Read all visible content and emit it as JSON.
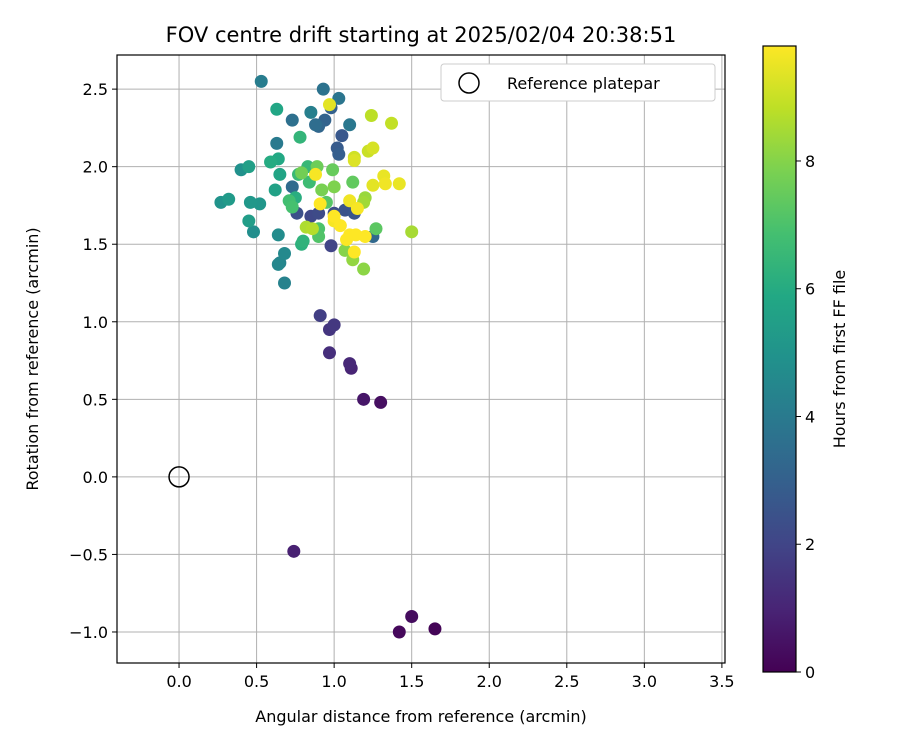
{
  "chart_data": {
    "type": "scatter",
    "title": "FOV centre drift starting at 2025/02/04 20:38:51",
    "xlabel": "Angular distance from reference (arcmin)",
    "ylabel": "Rotation from reference (arcmin)",
    "xlim": [
      -0.4,
      3.52
    ],
    "ylim": [
      -1.2,
      2.72
    ],
    "xticks": [
      0.0,
      0.5,
      1.0,
      1.5,
      2.0,
      2.5,
      3.0,
      3.5
    ],
    "xtick_labels": [
      "0.0",
      "0.5",
      "1.0",
      "1.5",
      "2.0",
      "2.5",
      "3.0",
      "3.5"
    ],
    "yticks": [
      -1.0,
      -0.5,
      0.0,
      0.5,
      1.0,
      1.5,
      2.0,
      2.5
    ],
    "ytick_labels": [
      "−1.0",
      "−0.5",
      "0.0",
      "0.5",
      "1.0",
      "1.5",
      "2.0",
      "2.5"
    ],
    "grid": true,
    "legend": {
      "placement": "top-right",
      "entries": [
        "Reference platepar"
      ]
    },
    "reference_point": {
      "x": 0.0,
      "y": 0.0
    },
    "colorbar": {
      "label": "Hours from first FF file",
      "range": [
        0,
        9.8
      ],
      "ticks": [
        0,
        2,
        4,
        6,
        8
      ],
      "tick_labels": [
        "0",
        "2",
        "4",
        "6",
        "8"
      ],
      "colormap": "viridis"
    },
    "points": [
      {
        "x": 1.65,
        "y": -0.98,
        "c": 0.1
      },
      {
        "x": 1.42,
        "y": -1.0,
        "c": 0.2
      },
      {
        "x": 1.5,
        "y": -0.9,
        "c": 0.3
      },
      {
        "x": 1.3,
        "y": 0.48,
        "c": 0.4
      },
      {
        "x": 1.19,
        "y": 0.5,
        "c": 0.6
      },
      {
        "x": 0.74,
        "y": -0.48,
        "c": 0.9
      },
      {
        "x": 1.11,
        "y": 0.7,
        "c": 1.0
      },
      {
        "x": 1.1,
        "y": 0.73,
        "c": 1.1
      },
      {
        "x": 0.97,
        "y": 0.8,
        "c": 1.3
      },
      {
        "x": 0.97,
        "y": 0.95,
        "c": 1.5
      },
      {
        "x": 1.0,
        "y": 0.98,
        "c": 1.6
      },
      {
        "x": 0.91,
        "y": 1.04,
        "c": 1.8
      },
      {
        "x": 0.98,
        "y": 1.49,
        "c": 2.0
      },
      {
        "x": 0.85,
        "y": 1.68,
        "c": 2.1
      },
      {
        "x": 0.9,
        "y": 1.7,
        "c": 2.2
      },
      {
        "x": 1.0,
        "y": 1.7,
        "c": 2.3
      },
      {
        "x": 0.76,
        "y": 1.7,
        "c": 2.4
      },
      {
        "x": 1.07,
        "y": 1.72,
        "c": 2.5
      },
      {
        "x": 1.13,
        "y": 1.7,
        "c": 2.6
      },
      {
        "x": 1.05,
        "y": 2.2,
        "c": 2.7
      },
      {
        "x": 1.02,
        "y": 2.12,
        "c": 2.8
      },
      {
        "x": 1.03,
        "y": 2.08,
        "c": 2.9
      },
      {
        "x": 0.98,
        "y": 2.38,
        "c": 3.0
      },
      {
        "x": 0.94,
        "y": 2.3,
        "c": 3.1
      },
      {
        "x": 0.9,
        "y": 2.26,
        "c": 3.2
      },
      {
        "x": 1.25,
        "y": 1.55,
        "c": 3.3
      },
      {
        "x": 0.73,
        "y": 1.87,
        "c": 3.4
      },
      {
        "x": 0.88,
        "y": 2.27,
        "c": 3.5
      },
      {
        "x": 0.73,
        "y": 2.3,
        "c": 3.6
      },
      {
        "x": 0.93,
        "y": 2.5,
        "c": 3.7
      },
      {
        "x": 1.03,
        "y": 2.44,
        "c": 3.8
      },
      {
        "x": 1.1,
        "y": 2.27,
        "c": 3.9
      },
      {
        "x": 0.63,
        "y": 2.15,
        "c": 4.0
      },
      {
        "x": 0.53,
        "y": 2.55,
        "c": 4.1
      },
      {
        "x": 0.85,
        "y": 2.35,
        "c": 4.2
      },
      {
        "x": 0.68,
        "y": 1.25,
        "c": 4.3
      },
      {
        "x": 0.65,
        "y": 1.38,
        "c": 4.4
      },
      {
        "x": 0.64,
        "y": 1.37,
        "c": 4.5
      },
      {
        "x": 0.68,
        "y": 1.44,
        "c": 4.6
      },
      {
        "x": 0.64,
        "y": 1.56,
        "c": 4.7
      },
      {
        "x": 0.48,
        "y": 1.58,
        "c": 4.8
      },
      {
        "x": 0.4,
        "y": 1.98,
        "c": 4.9
      },
      {
        "x": 0.27,
        "y": 1.77,
        "c": 5.0
      },
      {
        "x": 0.52,
        "y": 1.76,
        "c": 5.1
      },
      {
        "x": 0.46,
        "y": 1.77,
        "c": 5.2
      },
      {
        "x": 0.32,
        "y": 1.79,
        "c": 5.3
      },
      {
        "x": 0.45,
        "y": 1.65,
        "c": 5.4
      },
      {
        "x": 0.45,
        "y": 2.0,
        "c": 5.5
      },
      {
        "x": 0.62,
        "y": 1.85,
        "c": 5.6
      },
      {
        "x": 0.65,
        "y": 1.95,
        "c": 5.7
      },
      {
        "x": 0.63,
        "y": 2.37,
        "c": 5.8
      },
      {
        "x": 0.64,
        "y": 2.05,
        "c": 5.9
      },
      {
        "x": 0.59,
        "y": 2.03,
        "c": 6.0
      },
      {
        "x": 0.75,
        "y": 1.8,
        "c": 6.1
      },
      {
        "x": 0.79,
        "y": 1.5,
        "c": 6.2
      },
      {
        "x": 0.8,
        "y": 1.52,
        "c": 6.3
      },
      {
        "x": 0.78,
        "y": 2.19,
        "c": 6.4
      },
      {
        "x": 0.83,
        "y": 2.0,
        "c": 6.5
      },
      {
        "x": 0.77,
        "y": 1.95,
        "c": 6.6
      },
      {
        "x": 0.84,
        "y": 1.9,
        "c": 6.7
      },
      {
        "x": 0.71,
        "y": 1.78,
        "c": 6.8
      },
      {
        "x": 0.73,
        "y": 1.74,
        "c": 6.9
      },
      {
        "x": 0.9,
        "y": 1.6,
        "c": 7.0
      },
      {
        "x": 0.9,
        "y": 1.55,
        "c": 7.1
      },
      {
        "x": 0.95,
        "y": 1.77,
        "c": 7.2
      },
      {
        "x": 1.27,
        "y": 1.6,
        "c": 7.3
      },
      {
        "x": 1.12,
        "y": 1.9,
        "c": 7.4
      },
      {
        "x": 0.99,
        "y": 1.98,
        "c": 7.5
      },
      {
        "x": 0.89,
        "y": 2.0,
        "c": 7.6
      },
      {
        "x": 0.79,
        "y": 1.96,
        "c": 7.7
      },
      {
        "x": 0.92,
        "y": 1.85,
        "c": 7.8
      },
      {
        "x": 1.0,
        "y": 1.87,
        "c": 7.9
      },
      {
        "x": 1.07,
        "y": 1.46,
        "c": 8.0
      },
      {
        "x": 1.19,
        "y": 1.34,
        "c": 8.1
      },
      {
        "x": 1.12,
        "y": 1.4,
        "c": 8.2
      },
      {
        "x": 1.2,
        "y": 1.8,
        "c": 8.3
      },
      {
        "x": 1.19,
        "y": 1.77,
        "c": 8.4
      },
      {
        "x": 1.5,
        "y": 1.58,
        "c": 8.5
      },
      {
        "x": 0.82,
        "y": 1.61,
        "c": 8.6
      },
      {
        "x": 0.86,
        "y": 1.6,
        "c": 8.7
      },
      {
        "x": 1.24,
        "y": 2.33,
        "c": 8.8
      },
      {
        "x": 1.37,
        "y": 2.28,
        "c": 8.9
      },
      {
        "x": 1.22,
        "y": 2.1,
        "c": 9.0
      },
      {
        "x": 1.13,
        "y": 2.06,
        "c": 9.1
      },
      {
        "x": 1.25,
        "y": 2.12,
        "c": 9.2
      },
      {
        "x": 1.13,
        "y": 2.04,
        "c": 9.3
      },
      {
        "x": 0.97,
        "y": 2.4,
        "c": 9.4
      },
      {
        "x": 1.25,
        "y": 1.88,
        "c": 9.4
      },
      {
        "x": 1.42,
        "y": 1.89,
        "c": 9.5
      },
      {
        "x": 1.32,
        "y": 1.94,
        "c": 9.5
      },
      {
        "x": 1.33,
        "y": 1.89,
        "c": 9.6
      },
      {
        "x": 1.1,
        "y": 1.78,
        "c": 9.6
      },
      {
        "x": 1.15,
        "y": 1.73,
        "c": 9.7
      },
      {
        "x": 0.88,
        "y": 1.95,
        "c": 9.7
      },
      {
        "x": 1.0,
        "y": 1.65,
        "c": 9.7
      },
      {
        "x": 1.04,
        "y": 1.62,
        "c": 9.8
      },
      {
        "x": 1.1,
        "y": 1.56,
        "c": 9.8
      },
      {
        "x": 1.14,
        "y": 1.56,
        "c": 9.8
      },
      {
        "x": 1.2,
        "y": 1.55,
        "c": 9.8
      },
      {
        "x": 1.08,
        "y": 1.53,
        "c": 9.8
      },
      {
        "x": 1.13,
        "y": 1.45,
        "c": 9.8
      },
      {
        "x": 0.91,
        "y": 1.76,
        "c": 9.8
      },
      {
        "x": 1.0,
        "y": 1.68,
        "c": 9.8
      }
    ]
  }
}
